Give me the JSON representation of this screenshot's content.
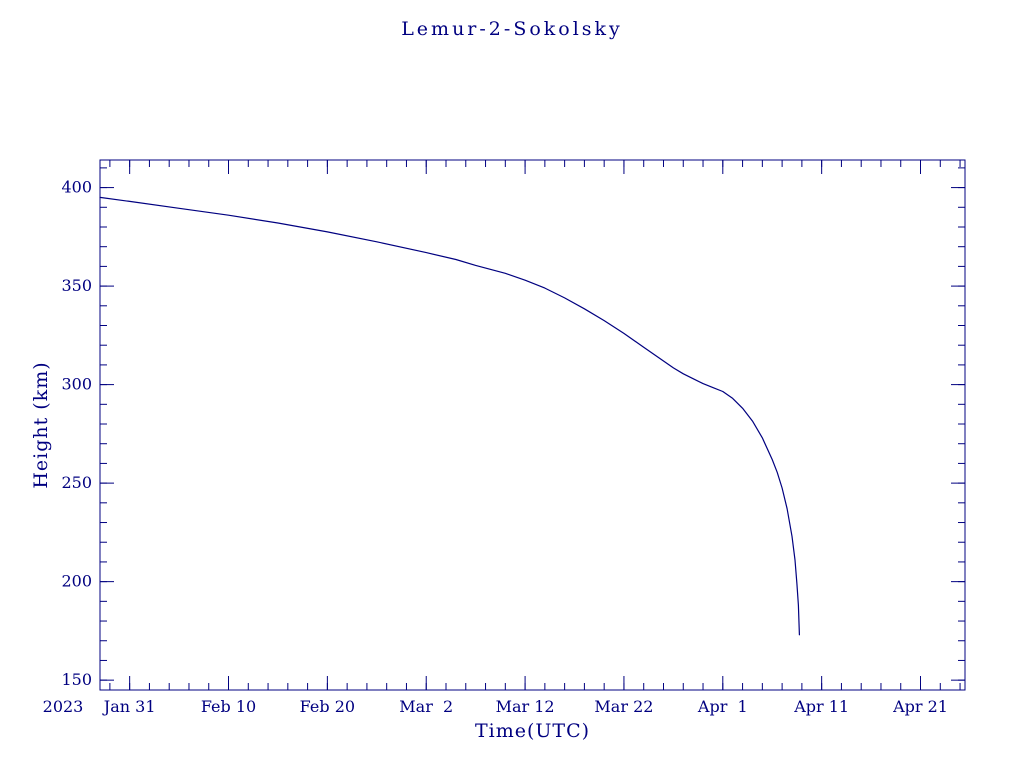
{
  "chart_data": {
    "type": "line",
    "title": "Lemur-2-Sokolsky",
    "xlabel": "Time(UTC)",
    "ylabel": "Height (km)",
    "year_label": "2023",
    "accent_color": "#000080",
    "background_color": "#ffffff",
    "x_unit": "days since 2023 Jan 31 (UTC)",
    "x_range": [
      -3,
      84.5
    ],
    "y_range": [
      145,
      414
    ],
    "x_minor_step": 2,
    "y_minor_step": 10,
    "grid": false,
    "legend": false,
    "x_ticks": [
      {
        "value": 0,
        "label": "Jan 31"
      },
      {
        "value": 10,
        "label": "Feb 10"
      },
      {
        "value": 20,
        "label": "Feb 20"
      },
      {
        "value": 30,
        "label": "Mar  2"
      },
      {
        "value": 40,
        "label": "Mar 12"
      },
      {
        "value": 50,
        "label": "Mar 22"
      },
      {
        "value": 60,
        "label": "Apr  1"
      },
      {
        "value": 70,
        "label": "Apr 11"
      },
      {
        "value": 80,
        "label": "Apr 21"
      }
    ],
    "y_ticks": [
      {
        "value": 150,
        "label": "150"
      },
      {
        "value": 200,
        "label": "200"
      },
      {
        "value": 250,
        "label": "250"
      },
      {
        "value": 300,
        "label": "300"
      },
      {
        "value": 350,
        "label": "350"
      },
      {
        "value": 400,
        "label": "400"
      }
    ],
    "series": [
      {
        "name": "Lemur-2-Sokolsky height (km)",
        "points": [
          [
            -3,
            395
          ],
          [
            0,
            393
          ],
          [
            5,
            389.5
          ],
          [
            10,
            386
          ],
          [
            15,
            382
          ],
          [
            20,
            377.5
          ],
          [
            25,
            372.5
          ],
          [
            30,
            367
          ],
          [
            33,
            363.5
          ],
          [
            35,
            360.5
          ],
          [
            38,
            356.5
          ],
          [
            40,
            353
          ],
          [
            42,
            349
          ],
          [
            44,
            344
          ],
          [
            46,
            338.5
          ],
          [
            48,
            332.5
          ],
          [
            50,
            326
          ],
          [
            52,
            319
          ],
          [
            53,
            315.5
          ],
          [
            54,
            312
          ],
          [
            55,
            308.5
          ],
          [
            56,
            305.5
          ],
          [
            57,
            303
          ],
          [
            58,
            300.5
          ],
          [
            59,
            298.5
          ],
          [
            60,
            296.5
          ],
          [
            61,
            293
          ],
          [
            62,
            288
          ],
          [
            63,
            281.5
          ],
          [
            64,
            273
          ],
          [
            65,
            262
          ],
          [
            65.5,
            255.5
          ],
          [
            66,
            247.5
          ],
          [
            66.5,
            237
          ],
          [
            67,
            223
          ],
          [
            67.3,
            211
          ],
          [
            67.5,
            199
          ],
          [
            67.65,
            188
          ],
          [
            67.75,
            173
          ]
        ]
      }
    ]
  }
}
